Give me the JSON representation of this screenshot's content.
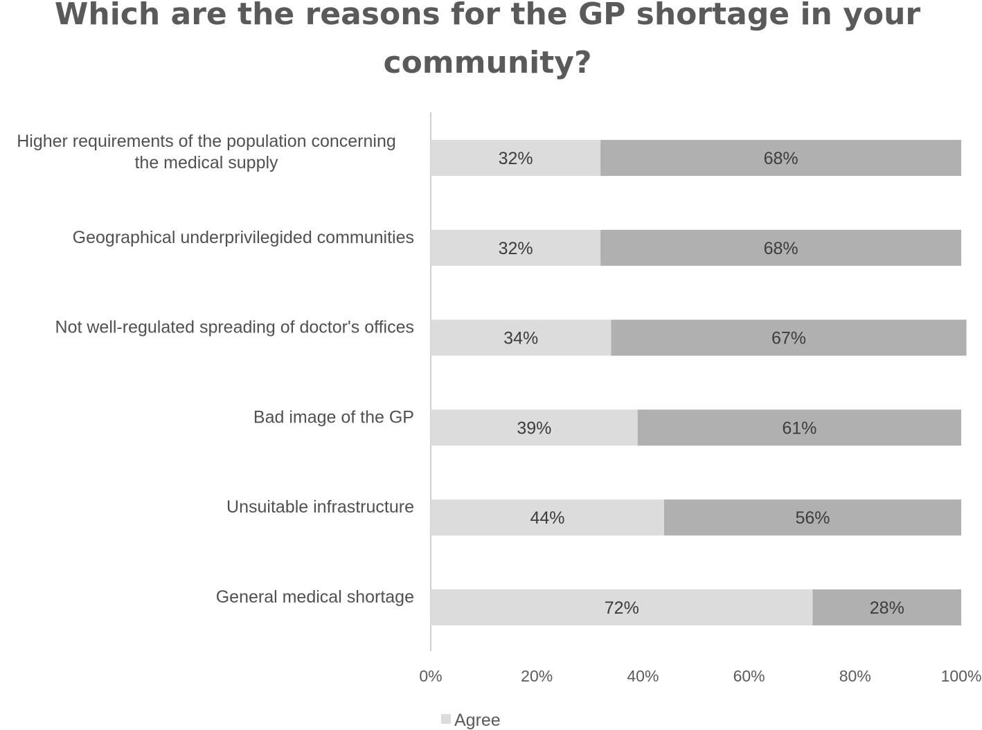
{
  "chart_data": {
    "type": "bar",
    "orientation": "horizontal",
    "stacked": true,
    "title": "Which are the reasons for the GP shortage in your community?",
    "title_lines": [
      "Which are the reasons for the GP shortage in your",
      "community?"
    ],
    "categories": [
      [
        "Higher requirements of the population concerning",
        "the medical supply"
      ],
      [
        "Geographical underprivilegided communities"
      ],
      [
        "Not well-regulated spreading of doctor's offices"
      ],
      [
        "Bad image of the GP"
      ],
      [
        "Unsuitable infrastructure"
      ],
      [
        "General medical shortage"
      ]
    ],
    "series": [
      {
        "name": "Agree",
        "color": "#dcdcdc",
        "values": [
          32,
          32,
          34,
          39,
          44,
          72
        ],
        "labels": [
          "32%",
          "32%",
          "34%",
          "39%",
          "44%",
          "72%"
        ]
      },
      {
        "name": "",
        "color": "#b0b0b0",
        "values": [
          68,
          68,
          67,
          61,
          56,
          28
        ],
        "labels": [
          "68%",
          "68%",
          "67%",
          "61%",
          "56%",
          "28%"
        ]
      }
    ],
    "xlim": [
      0,
      100
    ],
    "xticks": [
      "0%",
      "20%",
      "40%",
      "60%",
      "80%",
      "100%"
    ],
    "xlabel": "",
    "ylabel": "",
    "grid": false,
    "legend": {
      "position": "bottom",
      "entries": [
        "Agree"
      ]
    }
  }
}
